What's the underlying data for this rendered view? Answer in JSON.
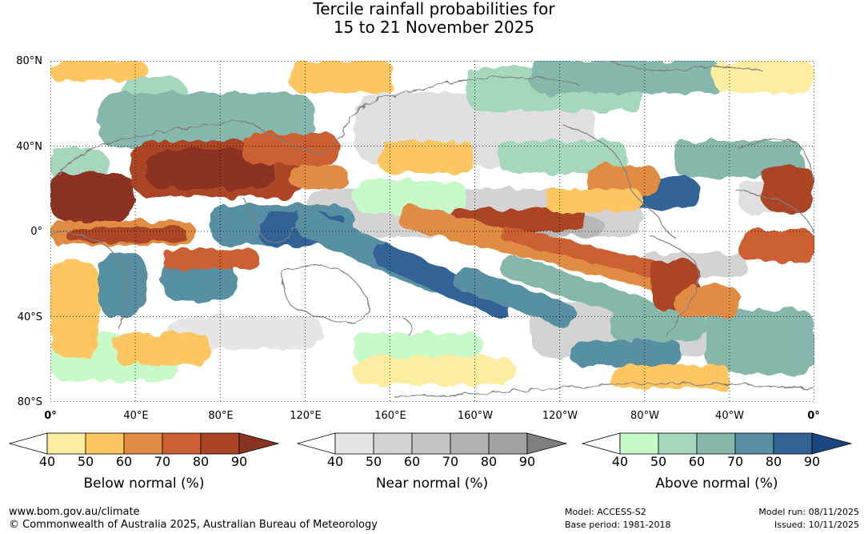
{
  "title": {
    "line1": "Tercile rainfall probabilities for",
    "line2": "15 to 21 November 2025"
  },
  "map": {
    "lat_labels": [
      "80°N",
      "40°N",
      "0°",
      "40°S",
      "80°S"
    ],
    "lon_labels": [
      "0°",
      "40°E",
      "80°E",
      "120°E",
      "160°E",
      "160°W",
      "120°W",
      "80°W",
      "40°W",
      "0°"
    ],
    "land_color": "#ffffff",
    "coast_color": "#808080",
    "grid_style": "dotted"
  },
  "legends": [
    {
      "name": "below",
      "title": "Below normal (%)",
      "ticks": [
        "40",
        "50",
        "60",
        "70",
        "80",
        "90"
      ],
      "colors": [
        "#ffffff",
        "#feeca0",
        "#fdc661",
        "#e08c45",
        "#cd6033",
        "#ab4425",
        "#8b3321"
      ]
    },
    {
      "name": "near",
      "title": "Near normal (%)",
      "ticks": [
        "40",
        "50",
        "60",
        "70",
        "80",
        "90"
      ],
      "colors": [
        "#ffffff",
        "#e6e6e6",
        "#d3d3d3",
        "#c4c4c4",
        "#b2b2b2",
        "#a2a2a2",
        "#7f7f7f"
      ]
    },
    {
      "name": "above",
      "title": "Above normal (%)",
      "ticks": [
        "40",
        "50",
        "60",
        "70",
        "80",
        "90"
      ],
      "colors": [
        "#ffffff",
        "#c8f9c8",
        "#a5d7bc",
        "#86b7ad",
        "#5990a3",
        "#316396",
        "#1b4680"
      ]
    }
  ],
  "footer": {
    "website": "www.bom.gov.au/climate",
    "copyright": "© Commonwealth of Australia 2025, Australian Bureau of Meteorology",
    "model": "Model: ACCESS-S2",
    "base_period": "Base period: 1981-2018",
    "model_run": "Model run: 08/11/2025",
    "issued": "Issued: 10/11/2025"
  }
}
